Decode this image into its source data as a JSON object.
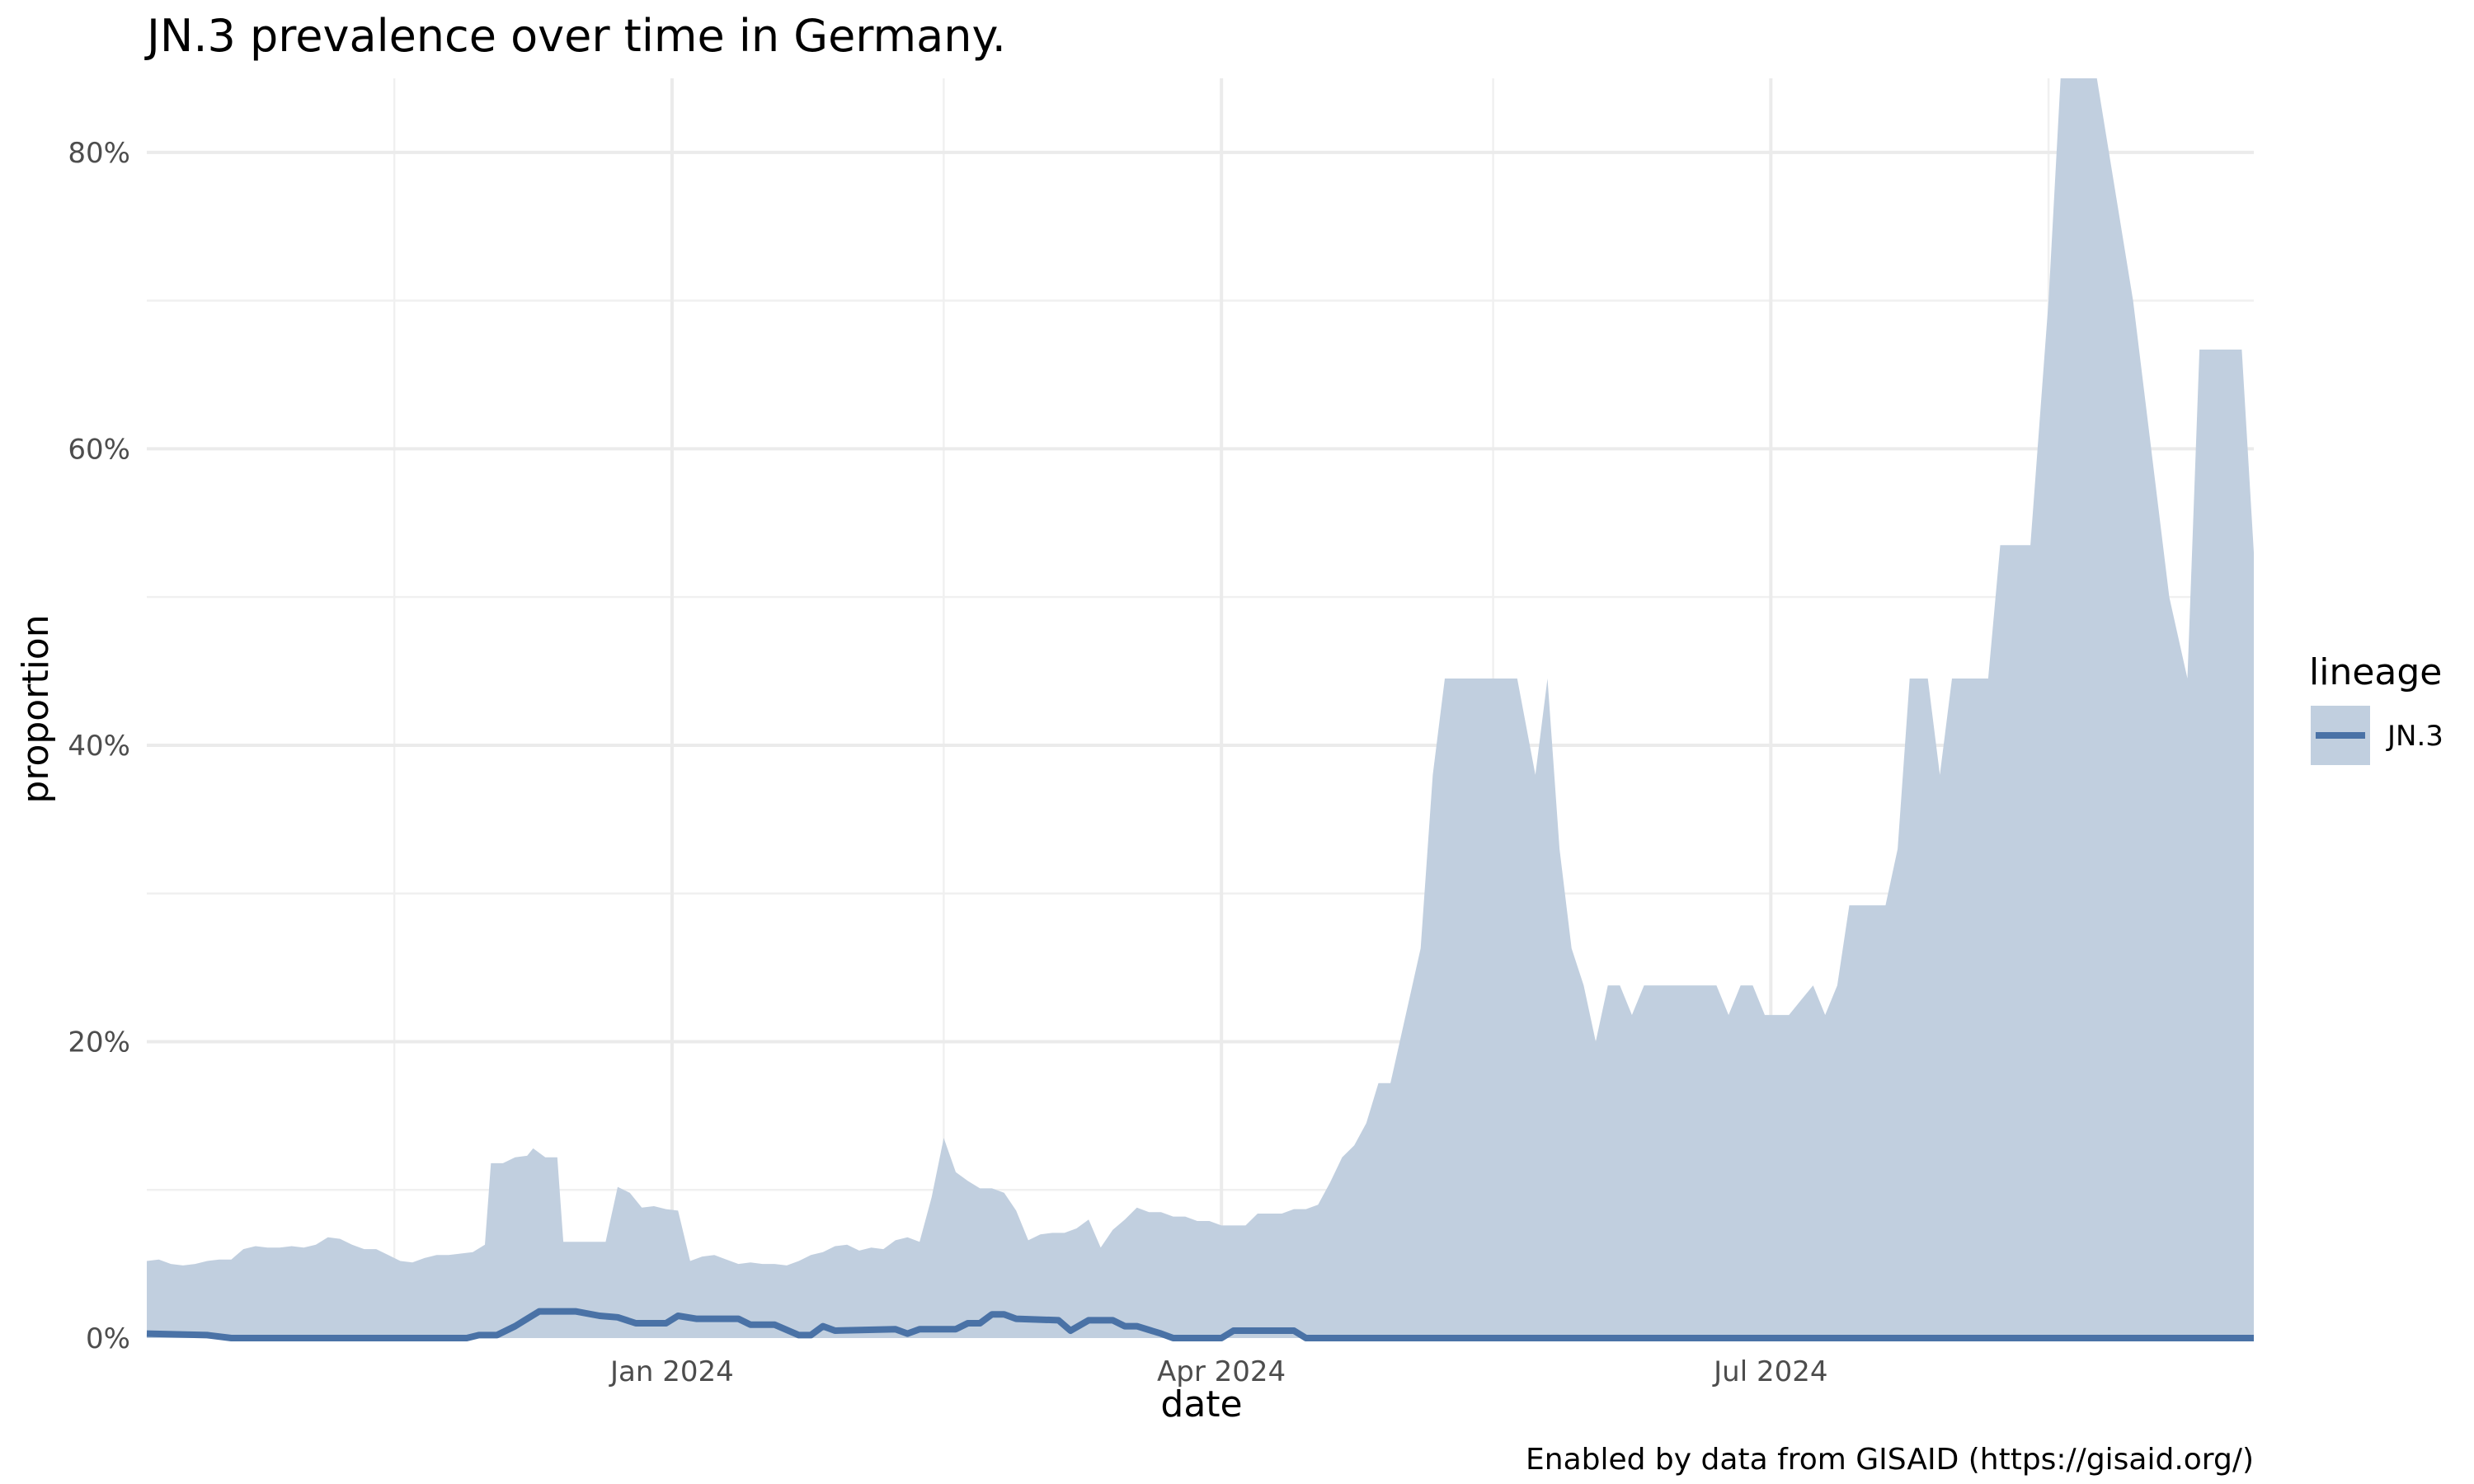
{
  "chart_data": {
    "type": "area",
    "title": "JN.3 prevalence over time in Germany.",
    "xlabel": "date",
    "ylabel": "proportion",
    "caption": "Enabled by data from GISAID (https://gisaid.org/)",
    "legend": {
      "title": "lineage",
      "position": "right"
    },
    "grid": true,
    "xlim": [
      "2023-10-06",
      "2024-09-19"
    ],
    "ylim": [
      0,
      0.85
    ],
    "x_ticks": [
      {
        "value": "2024-01-01",
        "label": "Jan 2024"
      },
      {
        "value": "2024-04-01",
        "label": "Apr 2024"
      },
      {
        "value": "2024-07-01",
        "label": "Jul 2024"
      }
    ],
    "x_minor_ticks": [
      "2023-11-16",
      "2024-02-15",
      "2024-05-16",
      "2024-08-16"
    ],
    "y_ticks": [
      {
        "value": 0,
        "label": "0%"
      },
      {
        "value": 0.2,
        "label": "20%"
      },
      {
        "value": 0.4,
        "label": "40%"
      },
      {
        "value": 0.6,
        "label": "60%"
      },
      {
        "value": 0.8,
        "label": "80%"
      }
    ],
    "y_minor_ticks": [
      0.1,
      0.3,
      0.5,
      0.7
    ],
    "series": [
      {
        "name": "JN.3",
        "color": "#4a72a6",
        "ribbon_color": "#c1cfdf",
        "upper": [
          [
            "2023-10-06",
            0.052
          ],
          [
            "2023-10-08",
            0.053
          ],
          [
            "2023-10-10",
            0.05
          ],
          [
            "2023-10-12",
            0.049
          ],
          [
            "2023-10-14",
            0.05
          ],
          [
            "2023-10-16",
            0.052
          ],
          [
            "2023-10-18",
            0.053
          ],
          [
            "2023-10-20",
            0.053
          ],
          [
            "2023-10-22",
            0.06
          ],
          [
            "2023-10-24",
            0.062
          ],
          [
            "2023-10-26",
            0.061
          ],
          [
            "2023-10-28",
            0.061
          ],
          [
            "2023-10-30",
            0.062
          ],
          [
            "2023-11-01",
            0.061
          ],
          [
            "2023-11-03",
            0.063
          ],
          [
            "2023-11-05",
            0.068
          ],
          [
            "2023-11-07",
            0.067
          ],
          [
            "2023-11-09",
            0.063
          ],
          [
            "2023-11-11",
            0.06
          ],
          [
            "2023-11-13",
            0.06
          ],
          [
            "2023-11-15",
            0.056
          ],
          [
            "2023-11-17",
            0.052
          ],
          [
            "2023-11-19",
            0.051
          ],
          [
            "2023-11-21",
            0.054
          ],
          [
            "2023-11-23",
            0.056
          ],
          [
            "2023-11-25",
            0.056
          ],
          [
            "2023-11-27",
            0.057
          ],
          [
            "2023-11-29",
            0.058
          ],
          [
            "2023-12-01",
            0.063
          ],
          [
            "2023-12-02",
            0.118
          ],
          [
            "2023-12-04",
            0.118
          ],
          [
            "2023-12-06",
            0.122
          ],
          [
            "2023-12-08",
            0.123
          ],
          [
            "2023-12-09",
            0.128
          ],
          [
            "2023-12-11",
            0.122
          ],
          [
            "2023-12-13",
            0.122
          ],
          [
            "2023-12-14",
            0.065
          ],
          [
            "2023-12-21",
            0.065
          ],
          [
            "2023-12-23",
            0.102
          ],
          [
            "2023-12-25",
            0.098
          ],
          [
            "2023-12-27",
            0.088
          ],
          [
            "2023-12-29",
            0.089
          ],
          [
            "2023-12-31",
            0.087
          ],
          [
            "2024-01-02",
            0.086
          ],
          [
            "2024-01-04",
            0.052
          ],
          [
            "2024-01-06",
            0.055
          ],
          [
            "2024-01-08",
            0.056
          ],
          [
            "2024-01-10",
            0.053
          ],
          [
            "2024-01-12",
            0.05
          ],
          [
            "2024-01-14",
            0.051
          ],
          [
            "2024-01-16",
            0.05
          ],
          [
            "2024-01-18",
            0.05
          ],
          [
            "2024-01-20",
            0.049
          ],
          [
            "2024-01-22",
            0.052
          ],
          [
            "2024-01-24",
            0.056
          ],
          [
            "2024-01-26",
            0.058
          ],
          [
            "2024-01-28",
            0.062
          ],
          [
            "2024-01-30",
            0.063
          ],
          [
            "2024-02-01",
            0.059
          ],
          [
            "2024-02-03",
            0.061
          ],
          [
            "2024-02-05",
            0.06
          ],
          [
            "2024-02-07",
            0.066
          ],
          [
            "2024-02-09",
            0.068
          ],
          [
            "2024-02-11",
            0.065
          ],
          [
            "2024-02-13",
            0.095
          ],
          [
            "2024-02-15",
            0.135
          ],
          [
            "2024-02-17",
            0.112
          ],
          [
            "2024-02-19",
            0.106
          ],
          [
            "2024-02-21",
            0.101
          ],
          [
            "2024-02-23",
            0.101
          ],
          [
            "2024-02-25",
            0.098
          ],
          [
            "2024-02-27",
            0.086
          ],
          [
            "2024-02-29",
            0.066
          ],
          [
            "2024-03-02",
            0.07
          ],
          [
            "2024-03-04",
            0.071
          ],
          [
            "2024-03-06",
            0.071
          ],
          [
            "2024-03-08",
            0.074
          ],
          [
            "2024-03-10",
            0.08
          ],
          [
            "2024-03-12",
            0.061
          ],
          [
            "2024-03-14",
            0.073
          ],
          [
            "2024-03-16",
            0.08
          ],
          [
            "2024-03-18",
            0.088
          ],
          [
            "2024-03-20",
            0.085
          ],
          [
            "2024-03-22",
            0.085
          ],
          [
            "2024-03-24",
            0.082
          ],
          [
            "2024-03-26",
            0.082
          ],
          [
            "2024-03-28",
            0.079
          ],
          [
            "2024-03-30",
            0.079
          ],
          [
            "2024-04-01",
            0.076
          ],
          [
            "2024-04-03",
            0.076
          ],
          [
            "2024-04-05",
            0.076
          ],
          [
            "2024-04-07",
            0.084
          ],
          [
            "2024-04-09",
            0.084
          ],
          [
            "2024-04-11",
            0.084
          ],
          [
            "2024-04-13",
            0.087
          ],
          [
            "2024-04-15",
            0.087
          ],
          [
            "2024-04-17",
            0.09
          ],
          [
            "2024-04-19",
            0.105
          ],
          [
            "2024-04-21",
            0.122
          ],
          [
            "2024-04-23",
            0.13
          ],
          [
            "2024-04-25",
            0.145
          ],
          [
            "2024-04-27",
            0.172
          ],
          [
            "2024-04-29",
            0.172
          ],
          [
            "2024-05-04",
            0.263
          ],
          [
            "2024-05-06",
            0.38
          ],
          [
            "2024-05-08",
            0.445
          ],
          [
            "2024-05-20",
            0.445
          ],
          [
            "2024-05-23",
            0.38
          ],
          [
            "2024-05-25",
            0.445
          ],
          [
            "2024-05-27",
            0.33
          ],
          [
            "2024-05-29",
            0.263
          ],
          [
            "2024-05-31",
            0.238
          ],
          [
            "2024-06-02",
            0.2
          ],
          [
            "2024-06-04",
            0.238
          ],
          [
            "2024-06-06",
            0.238
          ],
          [
            "2024-06-08",
            0.218
          ],
          [
            "2024-06-10",
            0.238
          ],
          [
            "2024-06-22",
            0.238
          ],
          [
            "2024-06-24",
            0.218
          ],
          [
            "2024-06-26",
            0.238
          ],
          [
            "2024-06-28",
            0.238
          ],
          [
            "2024-06-30",
            0.218
          ],
          [
            "2024-07-02",
            0.218
          ],
          [
            "2024-07-04",
            0.218
          ],
          [
            "2024-07-06",
            0.228
          ],
          [
            "2024-07-08",
            0.238
          ],
          [
            "2024-07-10",
            0.218
          ],
          [
            "2024-07-12",
            0.238
          ],
          [
            "2024-07-14",
            0.292
          ],
          [
            "2024-07-20",
            0.292
          ],
          [
            "2024-07-22",
            0.33
          ],
          [
            "2024-07-24",
            0.445
          ],
          [
            "2024-07-27",
            0.445
          ],
          [
            "2024-07-29",
            0.38
          ],
          [
            "2024-07-31",
            0.445
          ],
          [
            "2024-08-06",
            0.445
          ],
          [
            "2024-08-08",
            0.535
          ],
          [
            "2024-08-13",
            0.535
          ],
          [
            "2024-08-16",
            0.7
          ],
          [
            "2024-08-18",
            0.9
          ],
          [
            "2024-08-24",
            0.9
          ],
          [
            "2024-08-30",
            0.7
          ],
          [
            "2024-09-05",
            0.5
          ],
          [
            "2024-09-08",
            0.445
          ],
          [
            "2024-09-10",
            0.667
          ],
          [
            "2024-09-17",
            0.667
          ],
          [
            "2024-09-19",
            0.53
          ]
        ],
        "line": [
          [
            "2023-10-06",
            0.003
          ],
          [
            "2023-10-16",
            0.002
          ],
          [
            "2023-10-20",
            0
          ],
          [
            "2023-11-28",
            0
          ],
          [
            "2023-11-30",
            0.002
          ],
          [
            "2023-12-03",
            0.002
          ],
          [
            "2023-12-06",
            0.008
          ],
          [
            "2023-12-10",
            0.018
          ],
          [
            "2023-12-16",
            0.018
          ],
          [
            "2023-12-20",
            0.015
          ],
          [
            "2023-12-23",
            0.014
          ],
          [
            "2023-12-26",
            0.01
          ],
          [
            "2023-12-31",
            0.01
          ],
          [
            "2024-01-02",
            0.015
          ],
          [
            "2024-01-05",
            0.013
          ],
          [
            "2024-01-12",
            0.013
          ],
          [
            "2024-01-14",
            0.009
          ],
          [
            "2024-01-18",
            0.009
          ],
          [
            "2024-01-22",
            0.002
          ],
          [
            "2024-01-24",
            0.002
          ],
          [
            "2024-01-26",
            0.008
          ],
          [
            "2024-01-28",
            0.005
          ],
          [
            "2024-02-07",
            0.006
          ],
          [
            "2024-02-09",
            0.003
          ],
          [
            "2024-02-11",
            0.006
          ],
          [
            "2024-02-17",
            0.006
          ],
          [
            "2024-02-19",
            0.01
          ],
          [
            "2024-02-21",
            0.01
          ],
          [
            "2024-02-23",
            0.016
          ],
          [
            "2024-02-25",
            0.016
          ],
          [
            "2024-02-27",
            0.013
          ],
          [
            "2024-03-05",
            0.012
          ],
          [
            "2024-03-07",
            0.005
          ],
          [
            "2024-03-10",
            0.012
          ],
          [
            "2024-03-14",
            0.012
          ],
          [
            "2024-03-16",
            0.008
          ],
          [
            "2024-03-18",
            0.008
          ],
          [
            "2024-03-22",
            0.003
          ],
          [
            "2024-03-24",
            0
          ],
          [
            "2024-04-01",
            0
          ],
          [
            "2024-04-03",
            0.005
          ],
          [
            "2024-04-13",
            0.005
          ],
          [
            "2024-04-15",
            0
          ],
          [
            "2024-09-19",
            0
          ]
        ]
      }
    ]
  }
}
